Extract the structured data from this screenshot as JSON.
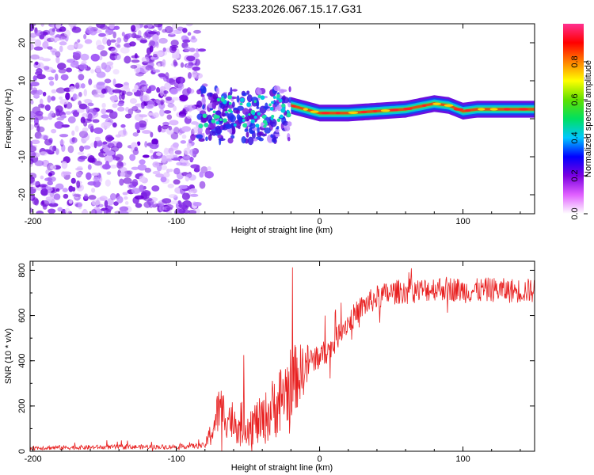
{
  "title": "S233.2026.067.15.17.G31",
  "chart_data": [
    {
      "type": "heatmap",
      "name": "spectrogram",
      "xlabel": "Height of straight line (km)",
      "ylabel": "Frequency (Hz)",
      "xlim": [
        -202,
        150
      ],
      "ylim": [
        -25,
        25
      ],
      "x_ticks": [
        -200,
        -100,
        0,
        100
      ],
      "x_tick_labels": [
        "-200",
        "-100",
        "0",
        "100"
      ],
      "y_ticks": [
        -20,
        -10,
        0,
        10,
        20
      ],
      "y_tick_labels": [
        "-20",
        "-10",
        "0",
        "10",
        "20"
      ],
      "colorbar": {
        "label": "Normalized spectral amplitude",
        "range": [
          0,
          1
        ],
        "ticks": [
          0,
          0.2,
          0.4,
          0.6,
          0.8
        ],
        "tick_labels": [
          "0.0",
          "0.2",
          "0.4",
          "0.6",
          "0.8"
        ],
        "stops": [
          "#ffffff",
          "#e060ff",
          "#7a00e0",
          "#0000ff",
          "#00c8ff",
          "#00e060",
          "#60e000",
          "#ffff00",
          "#ff8000",
          "#ff0000",
          "#ff3090"
        ]
      },
      "regions": [
        {
          "description": "noise",
          "x_range": [
            -202,
            -85
          ],
          "y_range": [
            -25,
            25
          ]
        },
        {
          "description": "transition",
          "x_range": [
            -85,
            -20
          ],
          "y_range": [
            -6,
            8
          ]
        },
        {
          "description": "tone",
          "x_range": [
            -20,
            150
          ],
          "y_range": [
            0,
            5
          ]
        }
      ],
      "ridge": {
        "x": [
          -20,
          -10,
          0,
          10,
          20,
          40,
          60,
          80,
          90,
          100,
          110,
          120,
          130,
          140,
          150
        ],
        "freq": [
          3.5,
          2.5,
          1.5,
          1.5,
          1.5,
          2.0,
          2.5,
          4.0,
          3.5,
          2.0,
          2.5,
          2.5,
          2.5,
          2.5,
          2.5
        ]
      }
    },
    {
      "type": "line",
      "name": "snr",
      "xlabel": "Height of straight line (km)",
      "ylabel": "SNR (10 * v/v)",
      "xlim": [
        -202,
        150
      ],
      "ylim": [
        0,
        840
      ],
      "x_ticks": [
        -200,
        -100,
        0,
        100
      ],
      "x_tick_labels": [
        "-200",
        "-100",
        "0",
        "100"
      ],
      "y_ticks": [
        0,
        200,
        400,
        600,
        800
      ],
      "y_tick_labels": [
        "0",
        "200",
        "400",
        "600",
        "800"
      ],
      "series": [
        {
          "name": "SNR",
          "color": "#e82020",
          "x": [
            -200,
            -150,
            -100,
            -80,
            -75,
            -70,
            -60,
            -50,
            -40,
            -30,
            -20,
            -10,
            -5,
            0,
            5,
            10,
            15,
            20,
            30,
            40,
            50,
            60,
            70,
            80,
            90,
            100,
            110,
            120,
            130,
            140,
            150
          ],
          "y": [
            15,
            18,
            20,
            25,
            90,
            190,
            130,
            120,
            130,
            210,
            300,
            370,
            410,
            420,
            440,
            470,
            540,
            570,
            640,
            680,
            700,
            710,
            710,
            720,
            720,
            710,
            710,
            715,
            710,
            710,
            710
          ],
          "noise": [
            10,
            10,
            10,
            12,
            70,
            110,
            95,
            95,
            110,
            150,
            170,
            110,
            70,
            60,
            55,
            55,
            55,
            55,
            55,
            55,
            55,
            55,
            55,
            55,
            55,
            55,
            55,
            55,
            55,
            55,
            55
          ]
        }
      ]
    }
  ]
}
